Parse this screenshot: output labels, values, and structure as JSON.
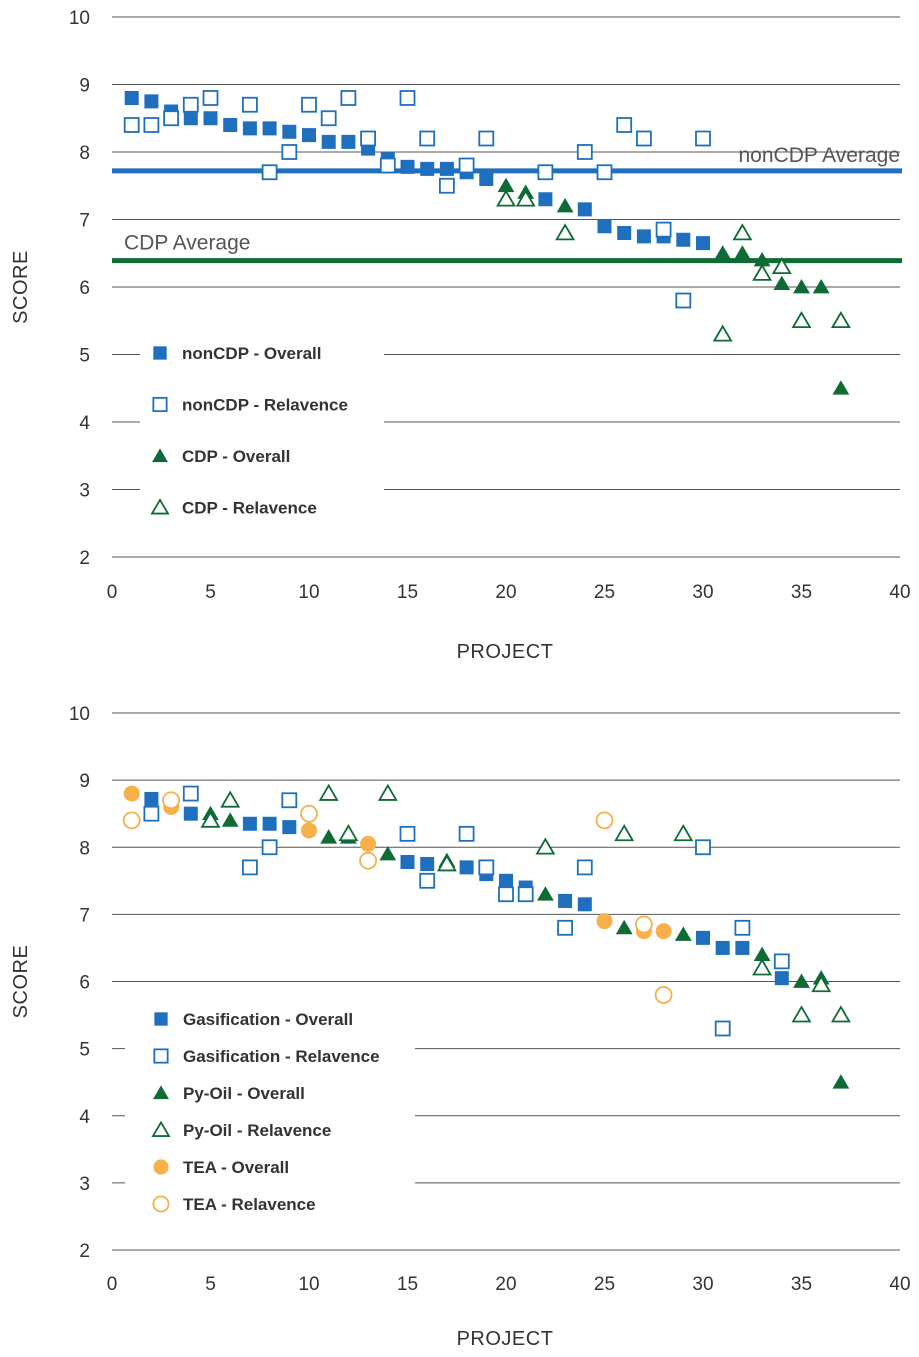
{
  "colors": {
    "blue": "#1f6fbf",
    "green": "#0e6b35",
    "orange": "#f7b04a"
  },
  "chart_data": [
    {
      "type": "scatter",
      "xlabel": "PROJECT",
      "ylabel": "SCORE",
      "xlim": [
        0,
        40
      ],
      "ylim": [
        2,
        10
      ],
      "xticks": [
        "0",
        "5",
        "10",
        "15",
        "20",
        "25",
        "30",
        "35",
        "40"
      ],
      "yticks": [
        "2",
        "3",
        "4",
        "5",
        "6",
        "7",
        "8",
        "9",
        "10"
      ],
      "grid": "horizontal",
      "legend_position": "left",
      "reference_lines": [
        {
          "label": "nonCDP Average",
          "y": 7.72,
          "color": "#1f6fbf"
        },
        {
          "label": "CDP Average",
          "y": 6.39,
          "color": "#0e6b35"
        }
      ],
      "series": [
        {
          "name": "nonCDP - Overall",
          "marker": "square-filled",
          "color": "#1f6fbf",
          "points": [
            [
              1,
              8.8
            ],
            [
              2,
              8.75
            ],
            [
              3,
              8.6
            ],
            [
              4,
              8.5
            ],
            [
              5,
              8.5
            ],
            [
              6,
              8.4
            ],
            [
              7,
              8.35
            ],
            [
              8,
              8.35
            ],
            [
              9,
              8.3
            ],
            [
              10,
              8.25
            ],
            [
              11,
              8.15
            ],
            [
              12,
              8.15
            ],
            [
              13,
              8.05
            ],
            [
              14,
              7.9
            ],
            [
              15,
              7.78
            ],
            [
              16,
              7.75
            ],
            [
              17,
              7.75
            ],
            [
              18,
              7.7
            ],
            [
              19,
              7.6
            ],
            [
              22,
              7.3
            ],
            [
              24,
              7.15
            ],
            [
              25,
              6.9
            ],
            [
              26,
              6.8
            ],
            [
              27,
              6.75
            ],
            [
              28,
              6.75
            ],
            [
              29,
              6.7
            ],
            [
              30,
              6.65
            ]
          ]
        },
        {
          "name": "nonCDP - Relavence",
          "marker": "square-open",
          "color": "#1f6fbf",
          "points": [
            [
              1,
              8.4
            ],
            [
              2,
              8.4
            ],
            [
              3,
              8.5
            ],
            [
              4,
              8.7
            ],
            [
              5,
              8.8
            ],
            [
              7,
              8.7
            ],
            [
              8,
              7.7
            ],
            [
              9,
              8.0
            ],
            [
              10,
              8.7
            ],
            [
              11,
              8.5
            ],
            [
              12,
              8.8
            ],
            [
              13,
              8.2
            ],
            [
              14,
              7.8
            ],
            [
              15,
              8.8
            ],
            [
              16,
              8.2
            ],
            [
              17,
              7.5
            ],
            [
              18,
              7.8
            ],
            [
              19,
              8.2
            ],
            [
              22,
              7.7
            ],
            [
              24,
              8.0
            ],
            [
              25,
              7.7
            ],
            [
              26,
              8.4
            ],
            [
              27,
              8.2
            ],
            [
              28,
              6.85
            ],
            [
              29,
              5.8
            ],
            [
              30,
              8.2
            ]
          ]
        },
        {
          "name": "CDP - Overall",
          "marker": "triangle-filled",
          "color": "#0e6b35",
          "points": [
            [
              20,
              7.5
            ],
            [
              21,
              7.4
            ],
            [
              23,
              7.2
            ],
            [
              31,
              6.5
            ],
            [
              32,
              6.5
            ],
            [
              33,
              6.4
            ],
            [
              34,
              6.05
            ],
            [
              35,
              6.0
            ],
            [
              36,
              6.0
            ],
            [
              37,
              4.5
            ]
          ]
        },
        {
          "name": "CDP - Relavence",
          "marker": "triangle-open",
          "color": "#0e6b35",
          "points": [
            [
              20,
              7.3
            ],
            [
              21,
              7.3
            ],
            [
              23,
              6.8
            ],
            [
              31,
              5.3
            ],
            [
              32,
              6.8
            ],
            [
              33,
              6.2
            ],
            [
              34,
              6.3
            ],
            [
              35,
              5.5
            ],
            [
              37,
              5.5
            ]
          ]
        }
      ]
    },
    {
      "type": "scatter",
      "xlabel": "PROJECT",
      "ylabel": "SCORE",
      "xlim": [
        0,
        40
      ],
      "ylim": [
        2,
        10
      ],
      "xticks": [
        "0",
        "5",
        "10",
        "15",
        "20",
        "25",
        "30",
        "35",
        "40"
      ],
      "yticks": [
        "2",
        "3",
        "4",
        "5",
        "6",
        "7",
        "8",
        "9",
        "10"
      ],
      "grid": "horizontal",
      "legend_position": "left",
      "series": [
        {
          "name": "Gasification - Overall",
          "marker": "square-filled",
          "color": "#1f6fbf",
          "points": [
            [
              2,
              8.72
            ],
            [
              4,
              8.5
            ],
            [
              7,
              8.35
            ],
            [
              8,
              8.35
            ],
            [
              9,
              8.3
            ],
            [
              15,
              7.78
            ],
            [
              16,
              7.75
            ],
            [
              18,
              7.7
            ],
            [
              19,
              7.6
            ],
            [
              20,
              7.5
            ],
            [
              21,
              7.4
            ],
            [
              23,
              7.2
            ],
            [
              24,
              7.15
            ],
            [
              30,
              6.65
            ],
            [
              31,
              6.5
            ],
            [
              32,
              6.5
            ],
            [
              34,
              6.05
            ]
          ]
        },
        {
          "name": "Gasification - Relavence",
          "marker": "square-open",
          "color": "#1f6fbf",
          "points": [
            [
              2,
              8.5
            ],
            [
              4,
              8.8
            ],
            [
              7,
              7.7
            ],
            [
              8,
              8.0
            ],
            [
              9,
              8.7
            ],
            [
              15,
              8.2
            ],
            [
              16,
              7.5
            ],
            [
              18,
              8.2
            ],
            [
              19,
              7.7
            ],
            [
              20,
              7.3
            ],
            [
              21,
              7.3
            ],
            [
              23,
              6.8
            ],
            [
              24,
              7.7
            ],
            [
              30,
              8.0
            ],
            [
              31,
              5.3
            ],
            [
              32,
              6.8
            ],
            [
              34,
              6.3
            ]
          ]
        },
        {
          "name": "Py-Oil - Overall",
          "marker": "triangle-filled",
          "color": "#0e6b35",
          "points": [
            [
              5,
              8.5
            ],
            [
              6,
              8.4
            ],
            [
              11,
              8.15
            ],
            [
              12,
              8.15
            ],
            [
              14,
              7.9
            ],
            [
              17,
              7.8
            ],
            [
              22,
              7.3
            ],
            [
              26,
              6.8
            ],
            [
              29,
              6.7
            ],
            [
              33,
              6.4
            ],
            [
              35,
              6.0
            ],
            [
              36,
              6.05
            ],
            [
              37,
              4.5
            ]
          ]
        },
        {
          "name": "Py-Oil - Relavence",
          "marker": "triangle-open",
          "color": "#0e6b35",
          "points": [
            [
              5,
              8.4
            ],
            [
              6,
              8.7
            ],
            [
              11,
              8.8
            ],
            [
              12,
              8.2
            ],
            [
              14,
              8.8
            ],
            [
              17,
              7.75
            ],
            [
              22,
              8.0
            ],
            [
              26,
              8.2
            ],
            [
              29,
              8.2
            ],
            [
              33,
              6.2
            ],
            [
              35,
              5.5
            ],
            [
              36,
              5.95
            ],
            [
              37,
              5.5
            ]
          ]
        },
        {
          "name": "TEA - Overall",
          "marker": "circle-filled",
          "color": "#f7b04a",
          "points": [
            [
              1,
              8.8
            ],
            [
              3,
              8.6
            ],
            [
              10,
              8.25
            ],
            [
              13,
              8.05
            ],
            [
              25,
              6.9
            ],
            [
              27,
              6.75
            ],
            [
              28,
              6.75
            ]
          ]
        },
        {
          "name": "TEA - Relavence",
          "marker": "circle-open",
          "color": "#f7b04a",
          "points": [
            [
              1,
              8.4
            ],
            [
              3,
              8.7
            ],
            [
              10,
              8.5
            ],
            [
              13,
              7.8
            ],
            [
              25,
              8.4
            ],
            [
              27,
              6.85
            ],
            [
              28,
              5.8
            ]
          ]
        }
      ]
    }
  ]
}
